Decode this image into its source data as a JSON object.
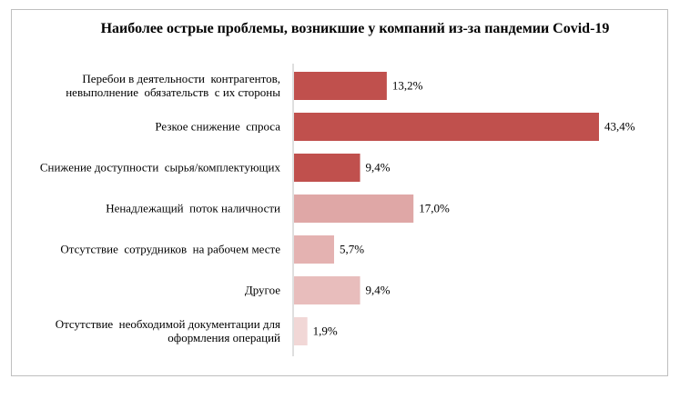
{
  "chart_data": {
    "type": "bar",
    "orientation": "horizontal",
    "title": "Наиболее острые проблемы, возникшие у компаний из-за пандемии Covid-19",
    "categories": [
      [
        "Перебои в деятельности  контрагентов,",
        "невыполнение  обязательств  с их стороны"
      ],
      [
        "Резкое снижение  спроса"
      ],
      [
        "Снижение доступности  сырья/комплектующих"
      ],
      [
        "Ненадлежащий  поток наличности"
      ],
      [
        "Отсутствие  сотрудников  на рабочем месте"
      ],
      [
        "Другое"
      ],
      [
        "Отсутствие  необходимой документации для",
        "оформления операций"
      ]
    ],
    "values": [
      13.2,
      43.4,
      9.4,
      17.0,
      5.7,
      9.4,
      1.9
    ],
    "value_labels": [
      "13,2%",
      "43,4%",
      "9,4%",
      "17,0%",
      "5,7%",
      "9,4%",
      "1,9%"
    ],
    "bar_colors": [
      "#c0504d",
      "#c0504d",
      "#c0504d",
      "#dfa7a6",
      "#e4b2b1",
      "#e8bdbc",
      "#f1d7d6"
    ],
    "xlim": [
      0,
      43.4
    ],
    "grid": false,
    "legend": "none"
  }
}
